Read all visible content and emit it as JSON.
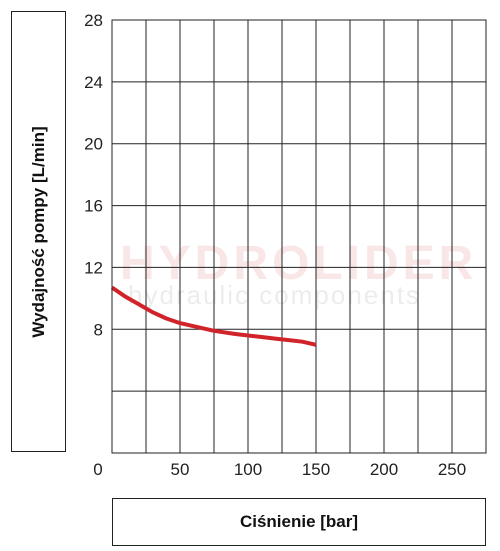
{
  "watermark": {
    "title": "HYDROLIDER",
    "subtitle": "hydraulic components"
  },
  "chart_data": {
    "type": "line",
    "xlabel": "Ciśnienie [bar]",
    "ylabel": "Wydajność pompy [L/min]",
    "xlim": [
      0,
      275
    ],
    "ylim": [
      0,
      28
    ],
    "x_ticks": [
      50,
      100,
      150,
      200,
      250
    ],
    "y_ticks": [
      8,
      12,
      16,
      20,
      24,
      28
    ],
    "origin_label": "0",
    "grid": true,
    "series": [
      {
        "color": "#d1232a",
        "x": [
          0,
          10,
          20,
          30,
          40,
          50,
          60,
          75,
          90,
          100,
          110,
          120,
          130,
          140,
          150
        ],
        "y": [
          10.7,
          10.1,
          9.6,
          9.1,
          8.7,
          8.4,
          8.2,
          7.9,
          7.7,
          7.6,
          7.5,
          7.4,
          7.3,
          7.2,
          7.0
        ]
      }
    ]
  }
}
